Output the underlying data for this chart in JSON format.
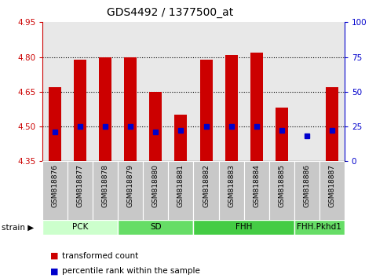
{
  "title": "GDS4492 / 1377500_at",
  "samples": [
    "GSM818876",
    "GSM818877",
    "GSM818878",
    "GSM818879",
    "GSM818880",
    "GSM818881",
    "GSM818882",
    "GSM818883",
    "GSM818884",
    "GSM818885",
    "GSM818886",
    "GSM818887"
  ],
  "transformed_counts": [
    4.67,
    4.79,
    4.8,
    4.8,
    4.65,
    4.55,
    4.79,
    4.81,
    4.82,
    4.58,
    4.35,
    4.67
  ],
  "percentile_ranks": [
    21,
    25,
    25,
    25,
    21,
    22,
    25,
    25,
    25,
    22,
    18,
    22
  ],
  "baseline": 4.35,
  "ylim_left": [
    4.35,
    4.95
  ],
  "ylim_right": [
    0,
    100
  ],
  "yticks_left": [
    4.35,
    4.5,
    4.65,
    4.8,
    4.95
  ],
  "yticks_right": [
    0,
    25,
    50,
    75,
    100
  ],
  "group_labels": [
    "PCK",
    "SD",
    "FHH",
    "FHH.Pkhd1"
  ],
  "group_starts": [
    0,
    3,
    6,
    10
  ],
  "group_ends": [
    2,
    5,
    9,
    11
  ],
  "group_colors": [
    "#ccffcc",
    "#66dd66",
    "#44cc44",
    "#66dd66"
  ],
  "bar_color": "#cc0000",
  "percentile_color": "#0000cc",
  "left_axis_color": "#cc0000",
  "right_axis_color": "#0000cc",
  "tick_bg_color": "#c8c8c8",
  "plot_bg_color": "#e8e8e8",
  "grid_yticks": [
    4.5,
    4.65,
    4.8
  ],
  "legend_items": [
    "transformed count",
    "percentile rank within the sample"
  ],
  "bar_width": 0.5,
  "percentile_marker_size": 5
}
